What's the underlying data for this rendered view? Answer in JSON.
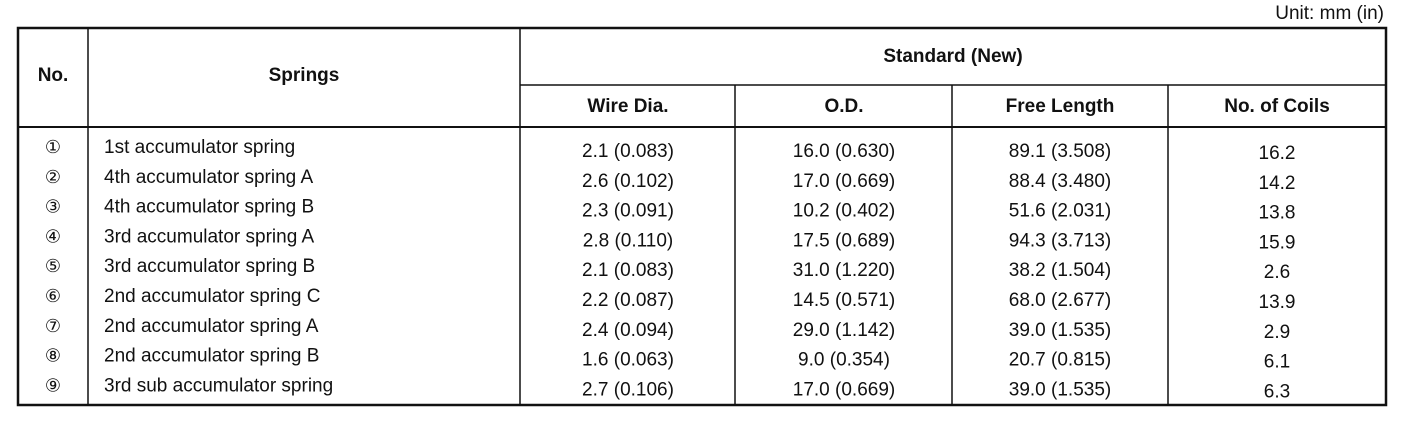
{
  "unit": "Unit: mm (in)",
  "table": {
    "header": {
      "no": "No.",
      "springs": "Springs",
      "standard": "Standard (New)",
      "columns": [
        "Wire Dia.",
        "O.D.",
        "Free Length",
        "No. of Coils"
      ]
    },
    "rows": [
      [
        "①",
        "1st accumulator spring",
        "2.1 (0.083)",
        "16.0 (0.630)",
        "89.1 (3.508)",
        "16.2"
      ],
      [
        "②",
        "4th accumulator spring A",
        "2.6 (0.102)",
        "17.0 (0.669)",
        "88.4 (3.480)",
        "14.2"
      ],
      [
        "③",
        "4th accumulator spring B",
        "2.3 (0.091)",
        "10.2 (0.402)",
        "51.6 (2.031)",
        "13.8"
      ],
      [
        "④",
        "3rd accumulator spring A",
        "2.8 (0.110)",
        "17.5 (0.689)",
        "94.3 (3.713)",
        "15.9"
      ],
      [
        "⑤",
        "3rd accumulator spring B",
        "2.1 (0.083)",
        "31.0 (1.220)",
        "38.2 (1.504)",
        "2.6"
      ],
      [
        "⑥",
        "2nd accumulator spring C",
        "2.2 (0.087)",
        "14.5 (0.571)",
        "68.0 (2.677)",
        "13.9"
      ],
      [
        "⑦",
        "2nd accumulator spring A",
        "2.4 (0.094)",
        "29.0 (1.142)",
        "39.0 (1.535)",
        "2.9"
      ],
      [
        "⑧",
        "2nd accumulator spring B",
        "1.6 (0.063)",
        "9.0 (0.354)",
        "20.7 (0.815)",
        "6.1"
      ],
      [
        "⑨",
        "3rd sub accumulator spring",
        "2.7 (0.106)",
        "17.0 (0.669)",
        "39.0 (1.535)",
        "6.3"
      ]
    ]
  }
}
